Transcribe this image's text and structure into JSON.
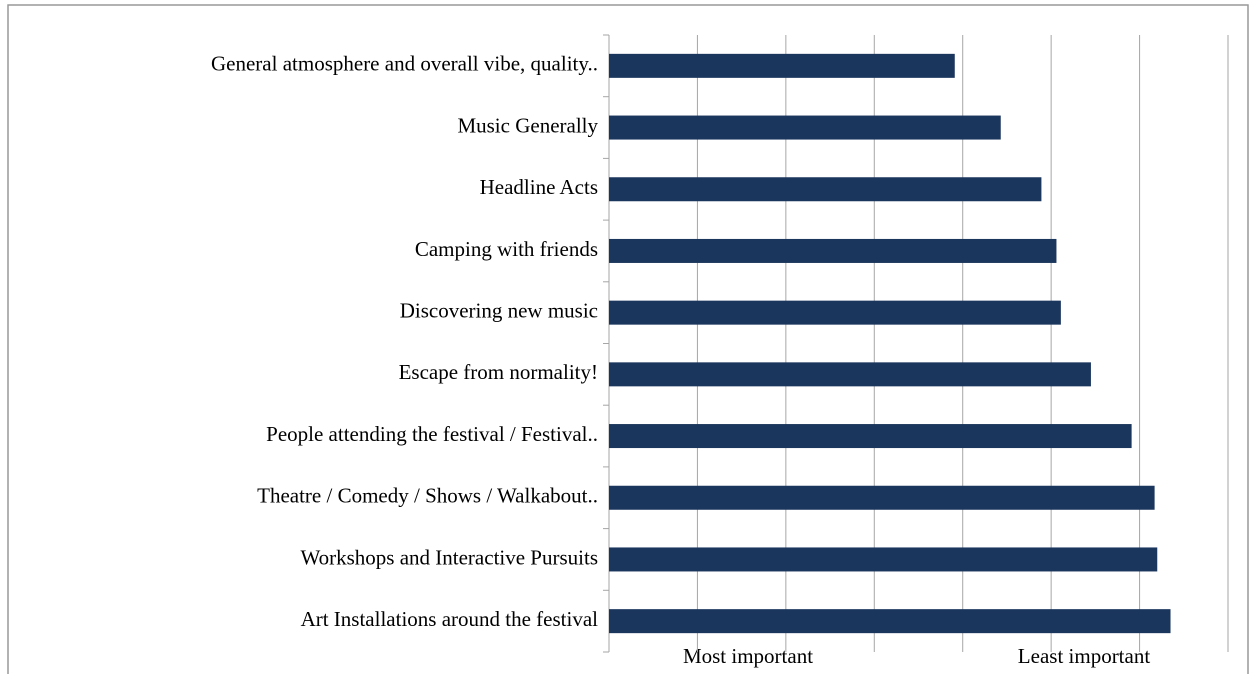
{
  "chart_data": {
    "type": "hbar",
    "categories": [
      "General atmosphere and overall vibe, quality..",
      "Music Generally",
      "Headline Acts",
      "Camping with friends",
      "Discovering new music",
      "Escape from normality!",
      "People attending the festival / Festival..",
      "Theatre / Comedy / Shows / Walkabout..",
      "Workshops and Interactive Pursuits",
      "Art Installations around the festival"
    ],
    "values": [
      3.91,
      4.43,
      4.89,
      5.06,
      5.11,
      5.45,
      5.91,
      6.17,
      6.2,
      6.35
    ],
    "color": "#1b365d",
    "xlim": [
      0,
      7
    ],
    "xticks": [
      0,
      1,
      2,
      3,
      4,
      5,
      6,
      7
    ],
    "grid": true,
    "x_label_low": "Most important",
    "x_label_high": "Least important"
  }
}
